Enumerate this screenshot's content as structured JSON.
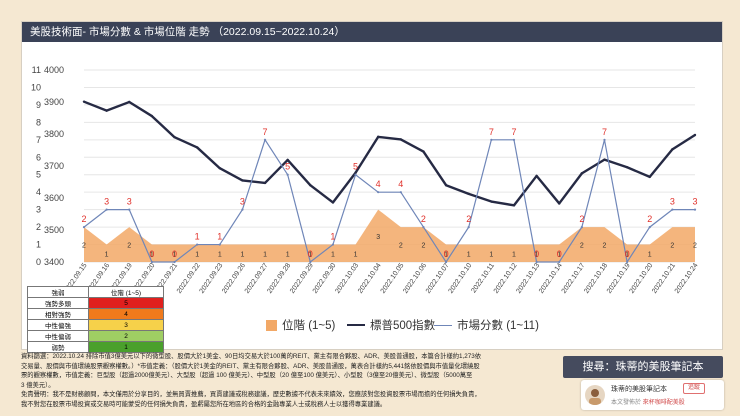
{
  "title": "美股技術面- 市場分數 & 市場位階 走勢 （2022.09.15~2022.10.24）",
  "chart_data": {
    "type": "combo",
    "dates": [
      "2022.09.15",
      "2022.09.16",
      "2022.09.19",
      "2022.09.20",
      "2022.09.21",
      "2022.09.22",
      "2022.09.23",
      "2022.09.26",
      "2022.09.27",
      "2022.09.28",
      "2022.09.29",
      "2022.09.30",
      "2022.10.03",
      "2022.10.04",
      "2022.10.05",
      "2022.10.06",
      "2022.10.07",
      "2022.10.10",
      "2022.10.11",
      "2022.10.12",
      "2022.10.13",
      "2022.10.14",
      "2022.10.17",
      "2022.10.18",
      "2022.10.19",
      "2022.10.20",
      "2022.10.21",
      "2022.10.24"
    ],
    "left_axis": {
      "min": 0,
      "max": 11,
      "ticks": [
        "0",
        "1",
        "2",
        "3",
        "4",
        "5",
        "6",
        "7",
        "8",
        "9",
        "10",
        "11"
      ]
    },
    "right_axis": {
      "min": 3400,
      "max": 4000,
      "ticks": [
        "3400",
        "3500",
        "3600",
        "3700",
        "3800",
        "3900",
        "4000"
      ]
    },
    "series": [
      {
        "name": "位階 (1~5)",
        "type": "area",
        "axis": "left",
        "color": "#f2a866",
        "values": [
          2,
          1,
          2,
          1,
          1,
          1,
          1,
          1,
          1,
          1,
          1,
          1,
          1,
          3,
          2,
          2,
          1,
          1,
          1,
          1,
          1,
          1,
          2,
          2,
          1,
          1,
          2,
          2
        ],
        "labels": [
          "2",
          "1",
          "2",
          "1",
          "1",
          "1",
          "1",
          "1",
          "1",
          "1",
          "1",
          "1",
          "1",
          "3",
          "2",
          "2",
          "1",
          "1",
          "1",
          "1",
          "1",
          "1",
          "2",
          "2",
          "1",
          "1",
          "2",
          "2"
        ]
      },
      {
        "name": "標普500指數",
        "type": "line",
        "axis": "right",
        "color": "#262a44",
        "values": [
          3901,
          3873,
          3900,
          3856,
          3790,
          3758,
          3693,
          3655,
          3647,
          3719,
          3640,
          3586,
          3679,
          3791,
          3783,
          3745,
          3640,
          3613,
          3589,
          3577,
          3669,
          3583,
          3677,
          3720,
          3696,
          3666,
          3752,
          3797
        ]
      },
      {
        "name": "市場分數 (1~11)",
        "type": "line",
        "axis": "left",
        "color": "#6f86b8",
        "values": [
          2,
          3,
          3,
          0,
          0,
          1,
          1,
          3,
          7,
          5,
          0,
          1,
          5,
          4,
          4,
          2,
          0,
          2,
          7,
          7,
          0,
          0,
          2,
          7,
          0,
          2,
          3,
          3
        ],
        "labels": [
          "2",
          "3",
          "3",
          "0",
          "0",
          "1",
          "1",
          "3",
          "7",
          "5",
          "0",
          "1",
          "5",
          "4",
          "4",
          "2",
          "0",
          "2",
          "7",
          "7",
          "0",
          "0",
          "2",
          "7",
          "0",
          "2",
          "3",
          "3"
        ]
      }
    ]
  },
  "legend": {
    "position_label": "位階 (1~5)",
    "sp500_label": "標普500指數",
    "score_label": "市場分數 (1~11)"
  },
  "strength_table": {
    "header": [
      "強弱",
      "位階 (1~5)"
    ],
    "rows": [
      {
        "label": "強勢多頭",
        "value": "5",
        "color": "#e0201e"
      },
      {
        "label": "相對強勢",
        "value": "4",
        "color": "#f07a1c"
      },
      {
        "label": "中性偏強",
        "value": "3",
        "color": "#f6d14a"
      },
      {
        "label": "中性偏弱",
        "value": "2",
        "color": "#9fce63"
      },
      {
        "label": "弱勢",
        "value": "1",
        "color": "#4aa02c"
      }
    ]
  },
  "notes": {
    "line1": "資料篩選：2022.10.24 排除市值3億美元以下的微型股、股價大於1美金、90日均交易大於100萬的REIT、黨主有限合夥股、ADR、美股普通股，本篇合計樣約1,273依",
    "line2": "交易量、股價與市值環繞股票觀察權數。）*市值定義：（股價大於1美金的REIT、黨主有限合夥股、ADR、美股普通股，萬表合計樣約5,441銘依股價與市值量化環繞股",
    "line3": "票的觀察權數，市值定義：巨型股（超過2000億美元）、大型股（超過 100 億美元）、中型股（20 億至100 億美元）、小型股（3億至20億美元）、微型股（5000萬至",
    "line4": "3 億美元）。",
    "line5": "免責聲明：我不是財務顧問，本文僅用於分享目的，並無買賣推薦，買賣建議或稅務建議，歷史數據不代表未來績效，您應該對您投資股票市場而擔的任何損失負責，",
    "line6": "我不對您在股票市場投資或交易時可能蒙受的任何損失負責，盈虧屬您所在地區的合格的金融專業人士或稅務人士以獲得專業建議。"
  },
  "search_label": "搜尋：珠蒂的美股筆記本",
  "profile": {
    "name": "珠蒂的美股筆記本",
    "follow": "追蹤",
    "note_prefix": "本文發佈於",
    "note_link": "來杯咖啡配美股"
  }
}
